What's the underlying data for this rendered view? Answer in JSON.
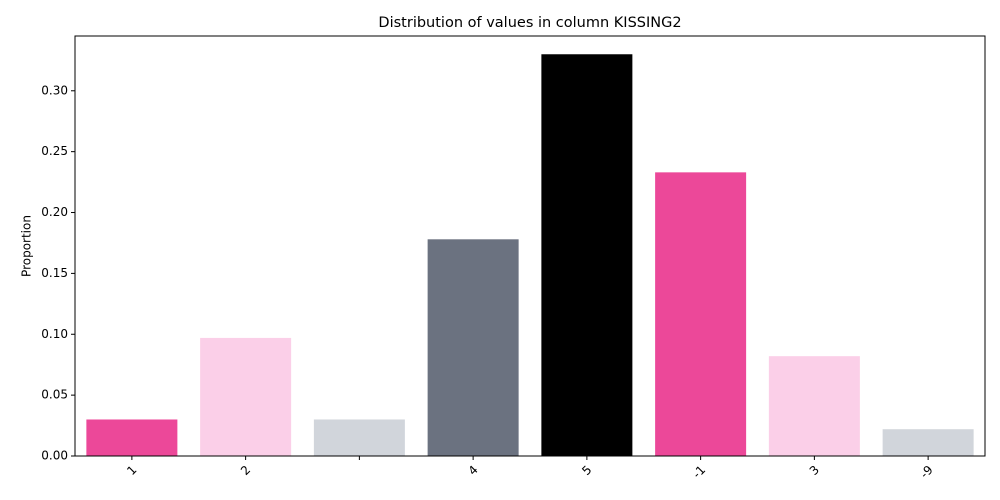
{
  "chart_data": {
    "type": "bar",
    "title": "Distribution of values in column KISSING2",
    "xlabel": "",
    "ylabel": "Proportion",
    "categories": [
      "1",
      "2",
      "",
      "4",
      "5",
      "-1",
      "3",
      "-9"
    ],
    "values": [
      0.03,
      0.097,
      0.03,
      0.178,
      0.33,
      0.233,
      0.082,
      0.022
    ],
    "colors": [
      "#ec4899",
      "#fbcfe8",
      "#d1d5db",
      "#6b7280",
      "#000000",
      "#ec4899",
      "#fbcfe8",
      "#d1d5db"
    ],
    "ylim": [
      0,
      0.345
    ],
    "yticks": [
      0.0,
      0.05,
      0.1,
      0.15,
      0.2,
      0.25,
      0.3
    ],
    "grid": false,
    "legend": "none"
  }
}
